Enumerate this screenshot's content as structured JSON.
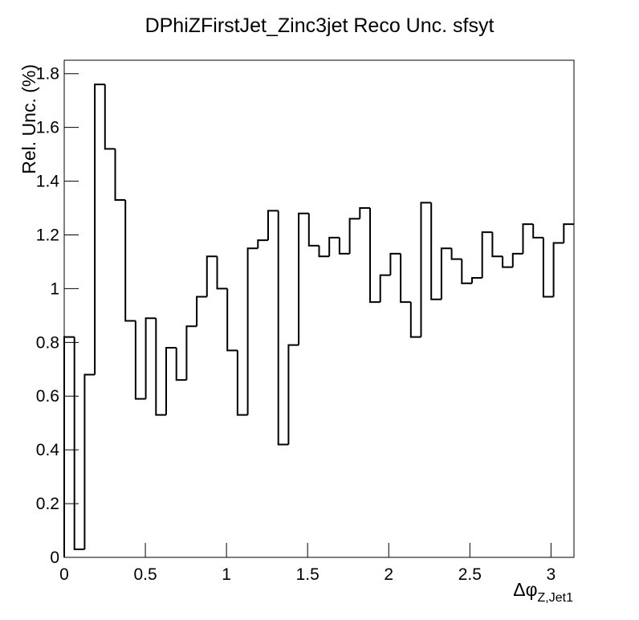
{
  "chart_data": {
    "type": "histogram",
    "title": "DPhiZFirstJet_Zinc3jet Reco Unc. sfsyt",
    "x_label": {
      "main": "Δφ",
      "sub": "Z,Jet1"
    },
    "y_label": "Rel. Unc. (%)",
    "bins": [
      0,
      0.0628,
      0.1257,
      0.1885,
      0.2513,
      0.3142,
      0.377,
      0.4398,
      0.5027,
      0.5655,
      0.6283,
      0.6912,
      0.754,
      0.8168,
      0.8796,
      0.9425,
      1.0053,
      1.0681,
      1.131,
      1.1938,
      1.2566,
      1.3195,
      1.3823,
      1.4451,
      1.508,
      1.5708,
      1.6336,
      1.6965,
      1.7593,
      1.8221,
      1.885,
      1.9478,
      2.0106,
      2.0735,
      2.1363,
      2.1991,
      2.2619,
      2.3248,
      2.3876,
      2.4504,
      2.5133,
      2.5761,
      2.6389,
      2.7018,
      2.7646,
      2.8274,
      2.8903,
      2.9531,
      3.0159,
      3.0788,
      3.1416
    ],
    "values": [
      0.82,
      0.03,
      0.68,
      1.76,
      1.52,
      1.33,
      0.88,
      0.59,
      0.89,
      0.53,
      0.78,
      0.66,
      0.86,
      0.97,
      1.12,
      1.0,
      0.77,
      0.53,
      1.15,
      1.18,
      1.29,
      0.42,
      0.79,
      1.28,
      1.16,
      1.12,
      1.19,
      1.13,
      1.26,
      1.3,
      0.95,
      1.05,
      1.13,
      0.95,
      0.82,
      1.32,
      0.96,
      1.15,
      1.11,
      1.02,
      1.04,
      1.21,
      1.12,
      1.08,
      1.13,
      1.24,
      1.19,
      0.97,
      1.17,
      1.24
    ],
    "color": "#000000",
    "xlim": [
      0,
      3.1416
    ],
    "xticks": [
      0,
      0.5,
      1,
      1.5,
      2,
      2.5,
      3
    ],
    "ylim": [
      0,
      1.85
    ],
    "yticks": [
      0,
      0.2,
      0.4,
      0.6,
      0.8,
      1,
      1.2,
      1.4,
      1.6,
      1.8
    ]
  }
}
